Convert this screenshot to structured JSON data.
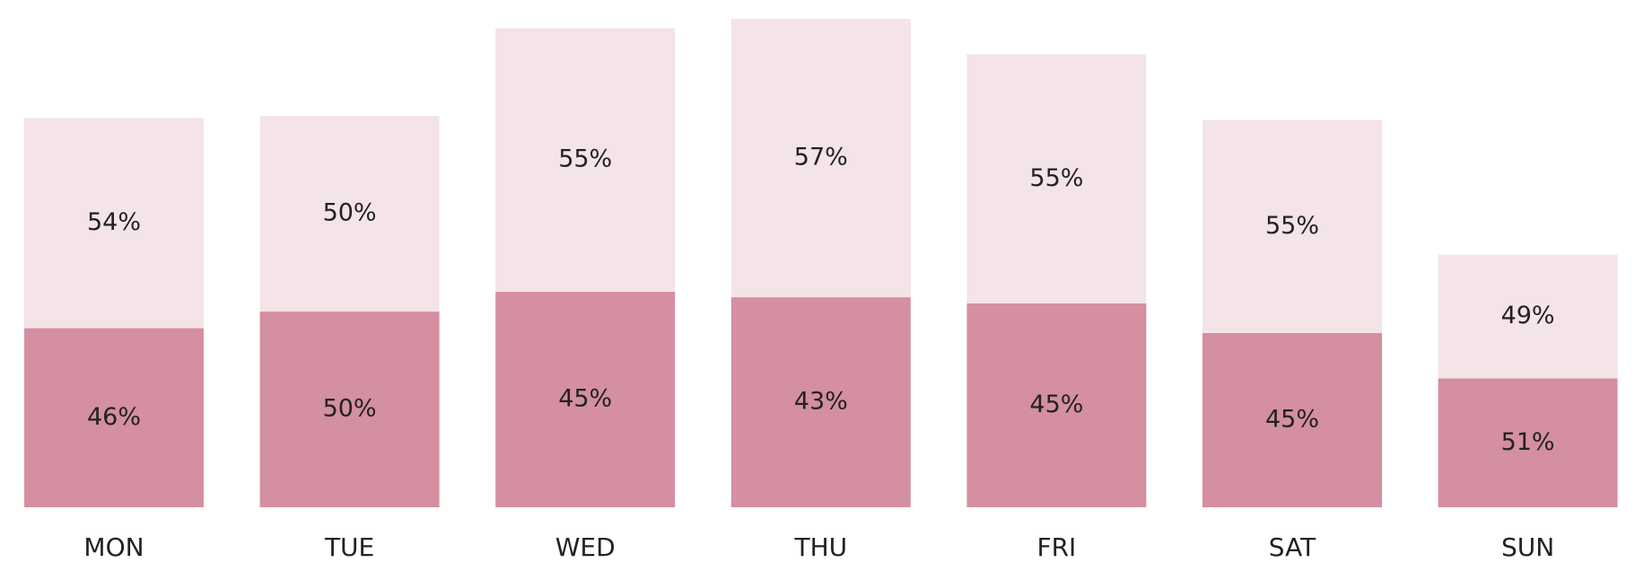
{
  "chart_data": {
    "type": "bar",
    "categories": [
      "MON",
      "TUE",
      "WED",
      "THU",
      "FRI",
      "SAT",
      "SUN"
    ],
    "totals": [
      373,
      375,
      459,
      468,
      434,
      371,
      242
    ],
    "ylim": [
      0,
      468
    ],
    "series": [
      {
        "color": "#d48fa0",
        "values": [
          46,
          50,
          45,
          43,
          45,
          45,
          51
        ]
      },
      {
        "color": "#f4e3e7",
        "values": [
          54,
          50,
          55,
          57,
          55,
          55,
          49
        ]
      }
    ]
  }
}
